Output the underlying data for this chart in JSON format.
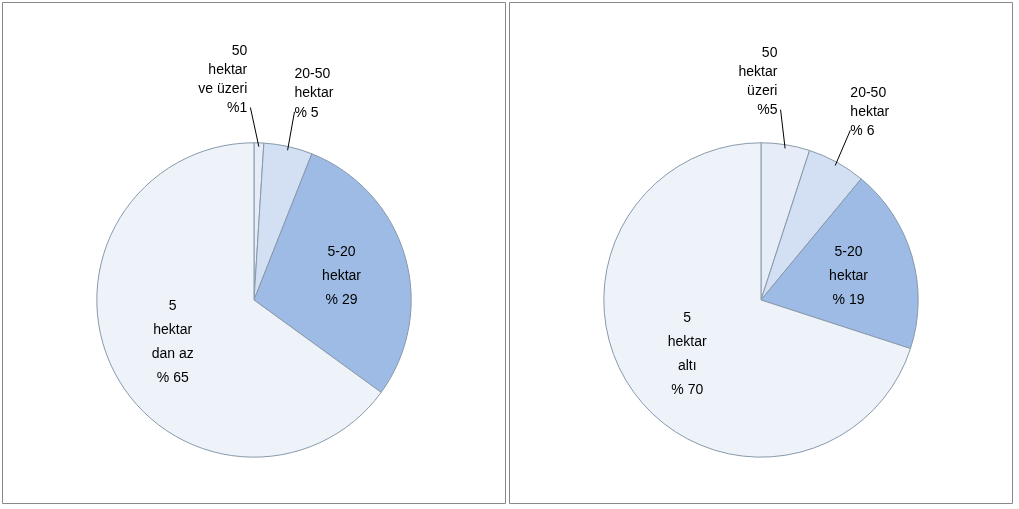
{
  "chart_data": [
    {
      "type": "pie",
      "categories": [
        "50\nhektar\nve üzeri",
        "20-50\nhektar",
        "5-20\nhektar",
        "5\nhektar\ndan az"
      ],
      "values": [
        1,
        5,
        29,
        65
      ],
      "value_labels": [
        "%1",
        "% 5",
        "% 29",
        "% 65"
      ],
      "colors": [
        "#e6edf8",
        "#d3e0f3",
        "#9dbbe4",
        "#eef3fa"
      ]
    },
    {
      "type": "pie",
      "categories": [
        "50\nhektar\nüzeri",
        "20-50\nhektar",
        "5-20\nhektar",
        "5\nhektar\naltı"
      ],
      "values": [
        5,
        6,
        19,
        70
      ],
      "value_labels": [
        "%5",
        "% 6",
        "% 19",
        "% 70"
      ],
      "colors": [
        "#e6edf8",
        "#d3e0f3",
        "#9dbbe4",
        "#eef3fa"
      ]
    }
  ]
}
